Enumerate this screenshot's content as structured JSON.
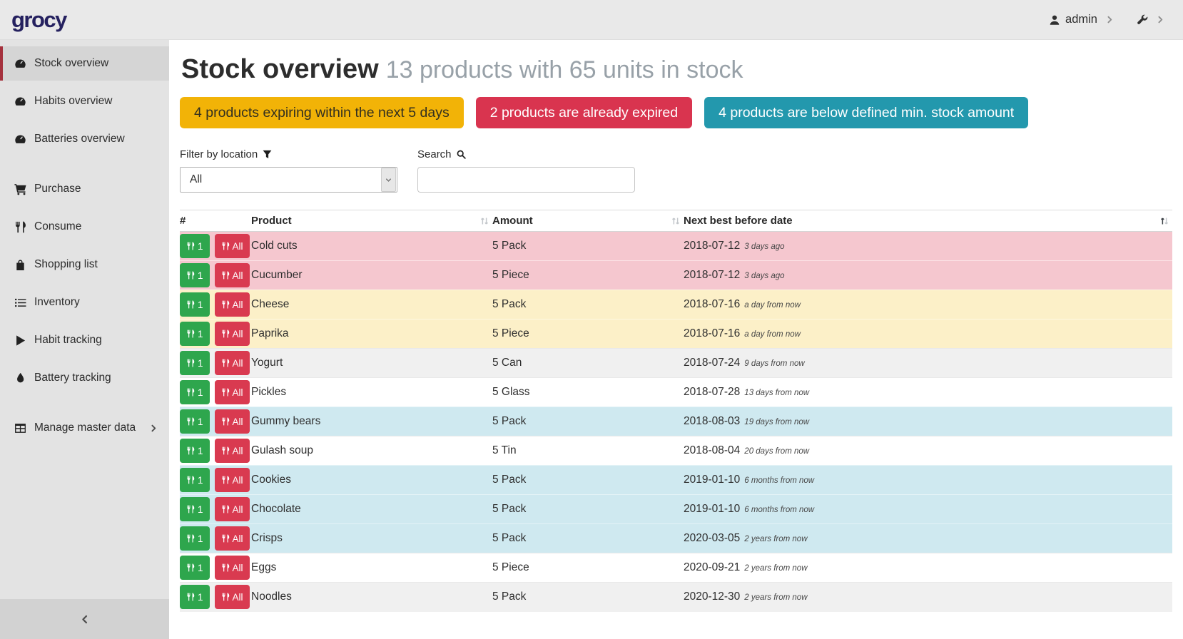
{
  "brand": "grocy",
  "topbar": {
    "user_label": "admin"
  },
  "sidebar": {
    "items": [
      {
        "label": "Stock overview",
        "icon": "tachometer",
        "active": true
      },
      {
        "label": "Habits overview",
        "icon": "tachometer"
      },
      {
        "label": "Batteries overview",
        "icon": "tachometer"
      },
      {
        "label": "Purchase",
        "icon": "cart",
        "gap_before": true
      },
      {
        "label": "Consume",
        "icon": "utensils"
      },
      {
        "label": "Shopping list",
        "icon": "bag"
      },
      {
        "label": "Inventory",
        "icon": "list"
      },
      {
        "label": "Habit tracking",
        "icon": "play"
      },
      {
        "label": "Battery tracking",
        "icon": "drop"
      },
      {
        "label": "Manage master data",
        "icon": "table",
        "chevron": true,
        "gap_before": true
      }
    ]
  },
  "header": {
    "title": "Stock overview",
    "subtitle": "13 products with 65 units in stock"
  },
  "alerts": [
    {
      "type": "warning",
      "text": "4 products expiring within the next 5 days"
    },
    {
      "type": "danger",
      "text": "2 products are already expired"
    },
    {
      "type": "info",
      "text": "4 products are below defined min. stock amount"
    }
  ],
  "filters": {
    "location_label": "Filter by location",
    "location_value": "All",
    "search_label": "Search",
    "search_value": ""
  },
  "table": {
    "columns": [
      "#",
      "Product",
      "Amount",
      "Next best before date"
    ],
    "sorted_column": "Next best before date",
    "sorted_direction": "asc",
    "consume_one_label": "1",
    "consume_all_label": "All",
    "rows": [
      {
        "product": "Cold cuts",
        "amount": "5 Pack",
        "date": "2018-07-12",
        "relative": "3 days ago",
        "state": "expired"
      },
      {
        "product": "Cucumber",
        "amount": "5 Piece",
        "date": "2018-07-12",
        "relative": "3 days ago",
        "state": "expired"
      },
      {
        "product": "Cheese",
        "amount": "5 Pack",
        "date": "2018-07-16",
        "relative": "a day from now",
        "state": "expiring"
      },
      {
        "product": "Paprika",
        "amount": "5 Piece",
        "date": "2018-07-16",
        "relative": "a day from now",
        "state": "expiring"
      },
      {
        "product": "Yogurt",
        "amount": "5 Can",
        "date": "2018-07-24",
        "relative": "9 days from now",
        "state": ""
      },
      {
        "product": "Pickles",
        "amount": "5 Glass",
        "date": "2018-07-28",
        "relative": "13 days from now",
        "state": ""
      },
      {
        "product": "Gummy bears",
        "amount": "5 Pack",
        "date": "2018-08-03",
        "relative": "19 days from now",
        "state": "belowmin"
      },
      {
        "product": "Gulash soup",
        "amount": "5 Tin",
        "date": "2018-08-04",
        "relative": "20 days from now",
        "state": ""
      },
      {
        "product": "Cookies",
        "amount": "5 Pack",
        "date": "2019-01-10",
        "relative": "6 months from now",
        "state": "belowmin"
      },
      {
        "product": "Chocolate",
        "amount": "5 Pack",
        "date": "2019-01-10",
        "relative": "6 months from now",
        "state": "belowmin"
      },
      {
        "product": "Crisps",
        "amount": "5 Pack",
        "date": "2020-03-05",
        "relative": "2 years from now",
        "state": "belowmin"
      },
      {
        "product": "Eggs",
        "amount": "5 Piece",
        "date": "2020-09-21",
        "relative": "2 years from now",
        "state": ""
      },
      {
        "product": "Noodles",
        "amount": "5 Pack",
        "date": "2020-12-30",
        "relative": "2 years from now",
        "state": ""
      }
    ]
  },
  "colors": {
    "accent_green": "#2ea64d",
    "accent_red": "#d9344f",
    "alert_warning": "#f2b307",
    "alert_info": "#2398ad",
    "row_expired": "#f5c7cf",
    "row_expiring": "#fcf0c8",
    "row_below_min": "#cfe9f0",
    "brand_navy": "#25215f"
  }
}
